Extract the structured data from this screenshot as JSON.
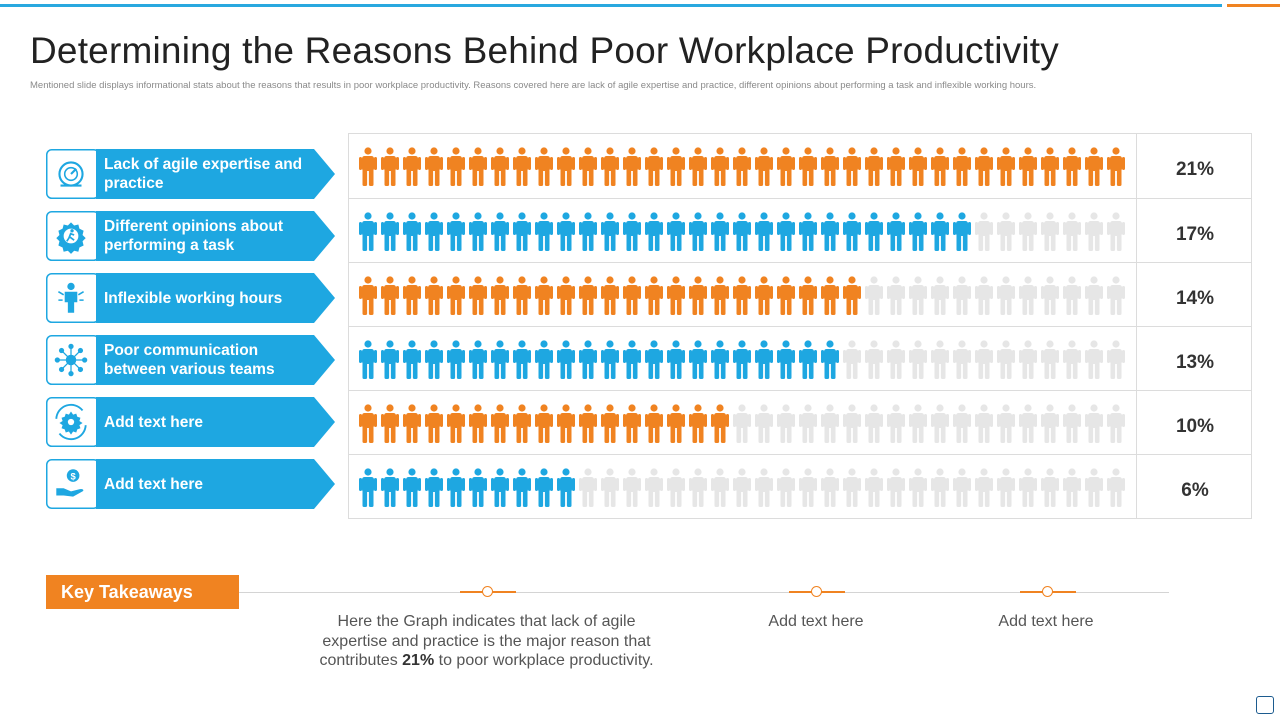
{
  "page": {
    "title": "Determining the Reasons Behind Poor Workplace Productivity",
    "subtitle": "Mentioned slide displays informational stats about the reasons that results in poor workplace productivity.  Reasons covered here are lack of agile expertise and practice, different opinions about performing a task and inflexible working hours."
  },
  "colors": {
    "orange": "#f08321",
    "blue": "#1ea7e1",
    "empty": "#e6e6e6"
  },
  "chart_data": {
    "type": "pictograph",
    "categories": [
      "Lack of agile expertise and practice",
      "Different opinions about performing a task",
      "Inflexible working hours",
      "Poor communication between various teams",
      "Add text here",
      "Add text here"
    ],
    "values": [
      21,
      17,
      14,
      13,
      10,
      6
    ],
    "value_labels": [
      "21%",
      "17%",
      "14%",
      "13%",
      "10%",
      "6%"
    ],
    "unit": "%",
    "filled_icons": [
      35,
      28,
      23,
      22,
      17,
      10
    ],
    "total_icons": 35,
    "row_colors": [
      "orange",
      "blue",
      "orange",
      "blue",
      "orange",
      "blue"
    ],
    "icons": [
      "speedometer-icon",
      "gear-running-person-icon",
      "person-clock-icon",
      "network-icon",
      "gear-cycle-icon",
      "hand-money-icon"
    ]
  },
  "takeaways": {
    "heading": "Key Takeaways",
    "main_before": "Here the Graph indicates that lack of agile expertise and practice is the major reason that contributes ",
    "main_bold": "21%",
    "main_after": " to poor workplace productivity.",
    "item2": "Add text here",
    "item3": "Add text here"
  }
}
